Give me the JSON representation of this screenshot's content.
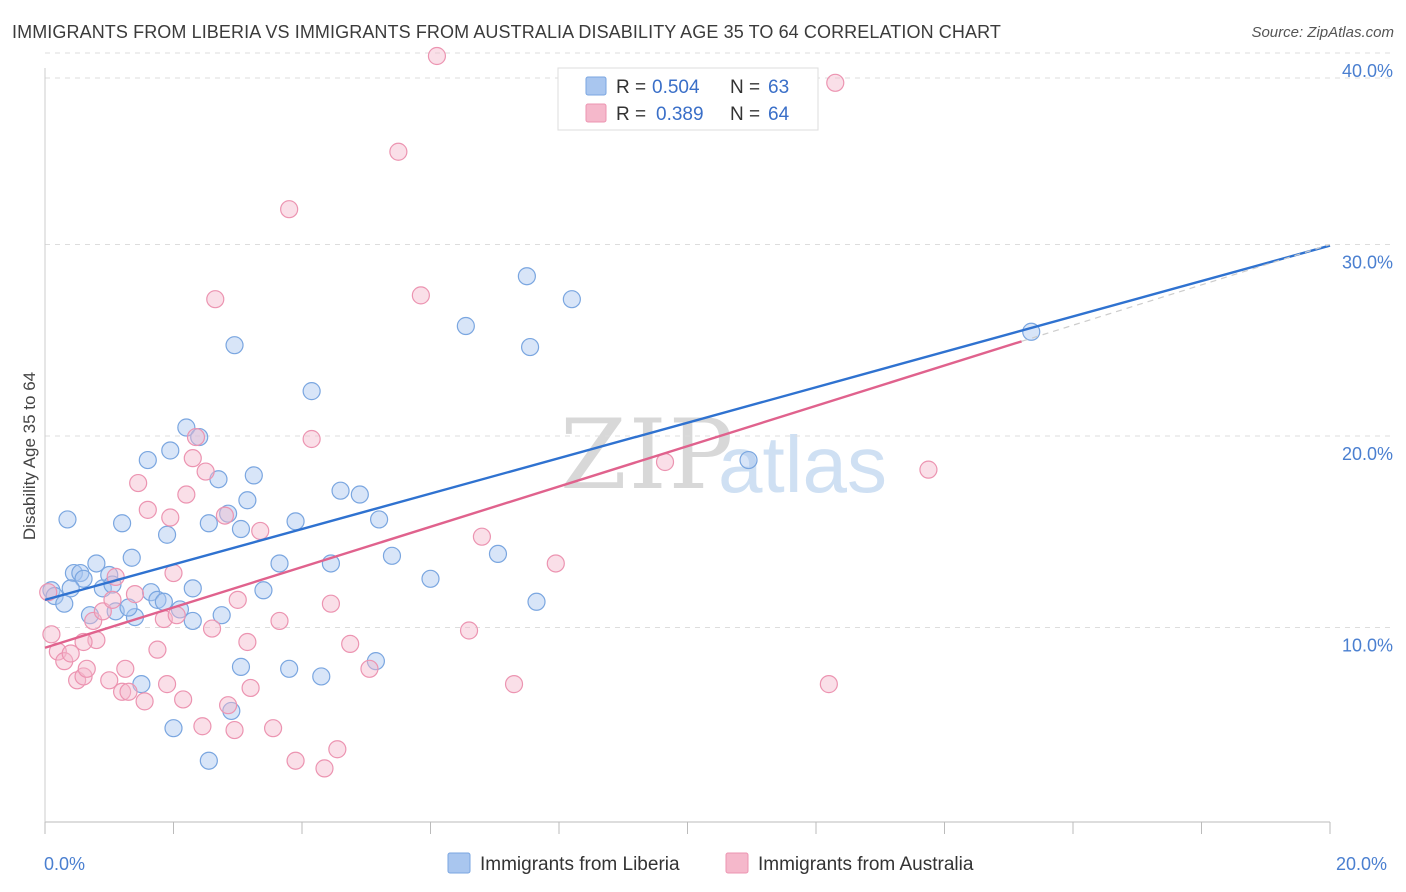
{
  "header": {
    "title": "IMMIGRANTS FROM LIBERIA VS IMMIGRANTS FROM AUSTRALIA DISABILITY AGE 35 TO 64 CORRELATION CHART",
    "source": "Source: ZipAtlas.com"
  },
  "watermark": {
    "zip": "ZIP",
    "atlas": "atlas"
  },
  "legend_top": {
    "rows": [
      {
        "r_label": "R =",
        "r_value": "0.504",
        "n_label": "N =",
        "n_value": "63",
        "color": "#a9c6ef"
      },
      {
        "r_label": "R =",
        "r_value": "0.389",
        "n_label": "N =",
        "n_value": "64",
        "color": "#f5b8cb"
      }
    ]
  },
  "chart_data": {
    "type": "scatter",
    "title": "IMMIGRANTS FROM LIBERIA VS IMMIGRANTS FROM AUSTRALIA DISABILITY AGE 35 TO 64 CORRELATION CHART",
    "xlabel": "",
    "ylabel": "Disability Age 35 to 64",
    "xlim": [
      0,
      20
    ],
    "ylim": [
      0,
      42
    ],
    "x_tick_labels": [
      "0.0%",
      "20.0%"
    ],
    "y_ticks": [
      10,
      20,
      30,
      40
    ],
    "y_tick_labels": [
      "10.0%",
      "20.0%",
      "30.0%",
      "40.0%"
    ],
    "grid": true,
    "legend_position": "bottom",
    "series": [
      {
        "name": "Immigrants from Liberia",
        "color": "#a9c6ef",
        "stroke": "#7aa6e0",
        "line_color": "#2f72d0",
        "trend": {
          "x0": 0.0,
          "y0": 11.6,
          "x1": 20.0,
          "y1": 30.1
        },
        "points": [
          [
            0.1,
            12.1
          ],
          [
            0.15,
            11.8
          ],
          [
            0.3,
            11.4
          ],
          [
            0.35,
            15.8
          ],
          [
            0.45,
            13.0
          ],
          [
            0.55,
            13.0
          ],
          [
            0.6,
            12.7
          ],
          [
            0.7,
            10.8
          ],
          [
            0.8,
            13.5
          ],
          [
            0.9,
            12.2
          ],
          [
            1.0,
            12.9
          ],
          [
            1.05,
            12.4
          ],
          [
            1.1,
            11.0
          ],
          [
            1.2,
            15.6
          ],
          [
            1.35,
            13.8
          ],
          [
            1.4,
            10.7
          ],
          [
            1.6,
            18.9
          ],
          [
            1.65,
            12.0
          ],
          [
            1.75,
            11.6
          ],
          [
            1.85,
            11.5
          ],
          [
            1.9,
            15.0
          ],
          [
            1.95,
            19.4
          ],
          [
            2.1,
            11.1
          ],
          [
            2.2,
            20.6
          ],
          [
            2.3,
            12.2
          ],
          [
            2.4,
            20.1
          ],
          [
            2.55,
            15.6
          ],
          [
            2.7,
            17.9
          ],
          [
            2.75,
            10.8
          ],
          [
            2.85,
            16.1
          ],
          [
            2.95,
            24.9
          ],
          [
            3.05,
            15.3
          ],
          [
            3.15,
            16.8
          ],
          [
            3.25,
            18.1
          ],
          [
            3.4,
            12.1
          ],
          [
            3.65,
            13.5
          ],
          [
            3.8,
            8.0
          ],
          [
            3.9,
            15.7
          ],
          [
            4.15,
            22.5
          ],
          [
            4.45,
            13.5
          ],
          [
            4.6,
            17.3
          ],
          [
            4.9,
            17.1
          ],
          [
            5.15,
            8.4
          ],
          [
            5.4,
            13.9
          ],
          [
            6.0,
            12.7
          ],
          [
            6.55,
            25.9
          ],
          [
            7.05,
            14.0
          ],
          [
            7.5,
            28.5
          ],
          [
            7.55,
            24.8
          ],
          [
            7.65,
            11.5
          ],
          [
            8.2,
            27.3
          ],
          [
            10.95,
            18.9
          ],
          [
            15.35,
            25.6
          ],
          [
            2.0,
            4.9
          ],
          [
            2.55,
            3.2
          ],
          [
            2.9,
            5.8
          ],
          [
            3.05,
            8.1
          ],
          [
            1.5,
            7.2
          ],
          [
            2.3,
            10.5
          ],
          [
            1.3,
            11.2
          ],
          [
            0.4,
            12.2
          ],
          [
            5.2,
            15.8
          ],
          [
            4.3,
            7.6
          ]
        ]
      },
      {
        "name": "Immigrants from Australia",
        "color": "#f5b8cb",
        "stroke": "#ec94b1",
        "line_color": "#e0628d",
        "trend": {
          "x0": 0.0,
          "y0": 9.1,
          "x1": 15.2,
          "y1": 25.1
        },
        "points": [
          [
            0.1,
            9.8
          ],
          [
            0.2,
            8.9
          ],
          [
            0.3,
            8.4
          ],
          [
            0.4,
            8.8
          ],
          [
            0.5,
            7.4
          ],
          [
            0.6,
            7.6
          ],
          [
            0.65,
            8.0
          ],
          [
            0.75,
            10.5
          ],
          [
            0.8,
            9.5
          ],
          [
            0.9,
            11.0
          ],
          [
            1.0,
            7.4
          ],
          [
            1.05,
            11.6
          ],
          [
            1.1,
            12.8
          ],
          [
            1.2,
            6.8
          ],
          [
            1.25,
            8.0
          ],
          [
            1.3,
            6.8
          ],
          [
            1.45,
            17.7
          ],
          [
            1.55,
            6.3
          ],
          [
            1.6,
            16.3
          ],
          [
            1.75,
            9.0
          ],
          [
            1.85,
            10.6
          ],
          [
            1.9,
            7.2
          ],
          [
            1.95,
            15.9
          ],
          [
            2.05,
            10.8
          ],
          [
            2.15,
            6.4
          ],
          [
            2.2,
            17.1
          ],
          [
            2.3,
            19.0
          ],
          [
            2.35,
            20.1
          ],
          [
            2.45,
            5.0
          ],
          [
            2.5,
            18.3
          ],
          [
            2.6,
            10.1
          ],
          [
            2.65,
            27.3
          ],
          [
            2.8,
            16.0
          ],
          [
            2.85,
            6.1
          ],
          [
            2.95,
            4.8
          ],
          [
            3.0,
            11.6
          ],
          [
            3.15,
            9.4
          ],
          [
            3.35,
            15.2
          ],
          [
            3.55,
            4.9
          ],
          [
            3.65,
            10.5
          ],
          [
            3.8,
            32.0
          ],
          [
            3.9,
            3.2
          ],
          [
            4.15,
            20.0
          ],
          [
            4.45,
            11.4
          ],
          [
            4.55,
            3.8
          ],
          [
            4.75,
            9.3
          ],
          [
            5.05,
            8.0
          ],
          [
            5.5,
            35.0
          ],
          [
            5.85,
            27.5
          ],
          [
            6.1,
            40.0
          ],
          [
            6.6,
            10.0
          ],
          [
            6.8,
            14.9
          ],
          [
            7.3,
            7.2
          ],
          [
            7.95,
            13.5
          ],
          [
            9.65,
            18.8
          ],
          [
            12.3,
            38.6
          ],
          [
            12.2,
            7.2
          ],
          [
            13.75,
            18.4
          ],
          [
            0.05,
            12.0
          ],
          [
            4.35,
            2.8
          ],
          [
            3.2,
            7.0
          ],
          [
            1.4,
            11.9
          ],
          [
            2.0,
            13.0
          ],
          [
            0.6,
            9.4
          ]
        ]
      }
    ]
  }
}
